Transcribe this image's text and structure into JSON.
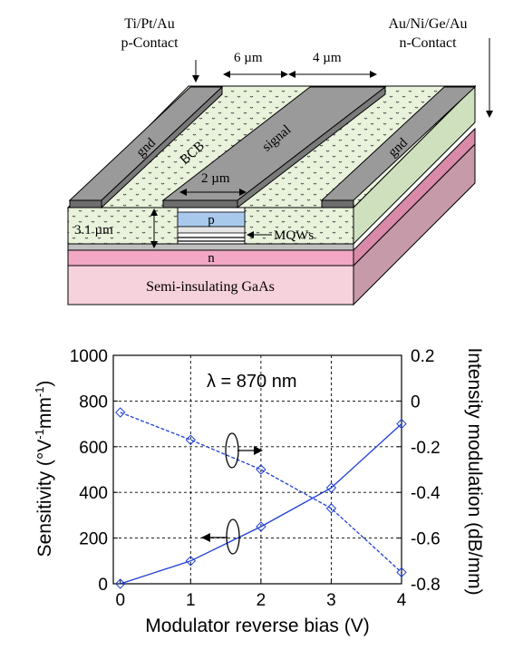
{
  "diagram": {
    "p_contact": {
      "metal": "Ti/Pt/Au",
      "label": "p-Contact"
    },
    "n_contact": {
      "metal": "Au/Ni/Ge/Au",
      "label": "n-Contact"
    },
    "dims": {
      "gap": "6 µm",
      "gap2": "4 µm",
      "width": "2 µm",
      "height": "3.1 µm"
    },
    "labels": {
      "gnd_left": "gnd",
      "signal": "signal",
      "gnd_right": "gnd",
      "bcb": "BCB",
      "p": "p",
      "n": "n",
      "mqws": "MQWs",
      "substrate": "Semi-insulating GaAs"
    },
    "colors": {
      "metal_top": "#9a9a9a",
      "metal_side": "#6e6e6e",
      "bcb": "#e9f3dc",
      "p_layer": "#a9c9ec",
      "n_layer": "#f2a8c4",
      "substrate_front": "#f6d2dc",
      "substrate_side": "#c69aa8"
    }
  },
  "chart_data": {
    "type": "line",
    "annotation": "λ = 870 nm",
    "xlabel": "Modulator reverse bias (V)",
    "ylabel_left": "Sensitivity (°V⁻¹mm⁻¹)",
    "ylabel_left_parts": [
      "Sensitivity (°V",
      "-1",
      "mm",
      "-1",
      ")"
    ],
    "ylabel_right": "Intensity modulation (dB/mm)",
    "xlim": [
      -0.1,
      4.0
    ],
    "ylim_left": [
      0,
      1000
    ],
    "ylim_right": [
      -0.8,
      0.2
    ],
    "x_ticks": [
      "0",
      "1",
      "2",
      "3",
      "4"
    ],
    "y_left_ticks": [
      "0",
      "200",
      "400",
      "600",
      "800",
      "1000"
    ],
    "y_right_ticks": [
      "-0.8",
      "-0.6",
      "-0.4",
      "-0.2",
      "0",
      "0.2"
    ],
    "grid": "dashed",
    "series": [
      {
        "axis": "left",
        "style": "solid",
        "color": "#1f3fd6",
        "x": [
          0,
          1,
          2,
          3,
          4
        ],
        "values": [
          0,
          100,
          250,
          420,
          700
        ]
      },
      {
        "axis": "right",
        "style": "dashed",
        "color": "#1f3fd6",
        "x": [
          0,
          1,
          2,
          3,
          4
        ],
        "values": [
          -0.05,
          -0.17,
          -0.3,
          -0.47,
          -0.75
        ]
      }
    ]
  }
}
